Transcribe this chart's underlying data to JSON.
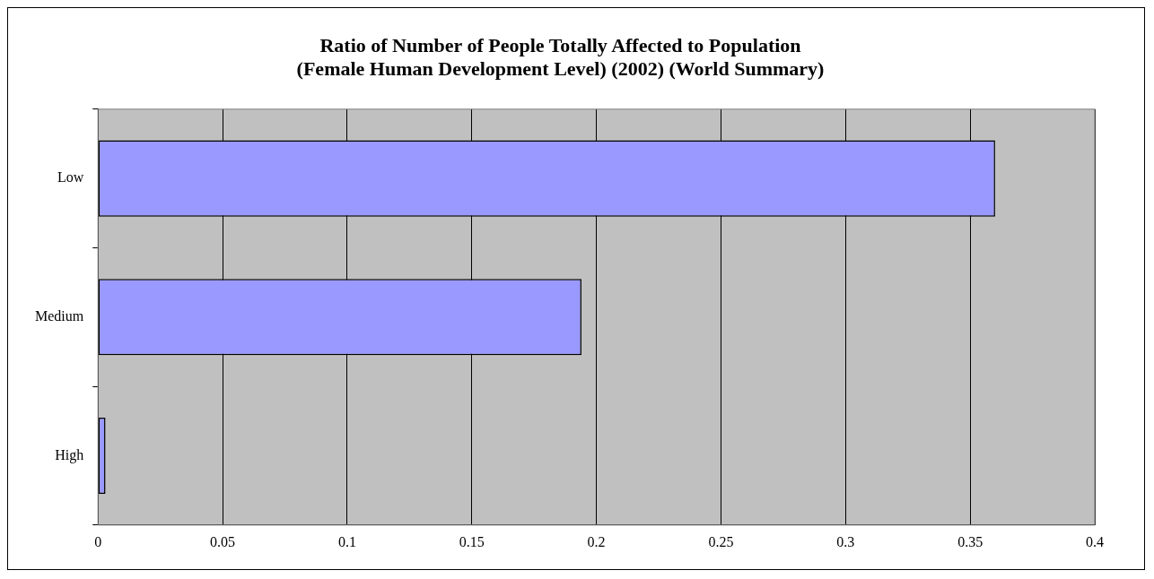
{
  "chart_data": {
    "type": "bar",
    "orientation": "horizontal",
    "title": [
      "Ratio of Number of People Totally Affected to Population",
      "(Female Human Development Level) (2002) (World Summary)"
    ],
    "categories": [
      "Low",
      "Medium",
      "High"
    ],
    "values": [
      0.36,
      0.194,
      0.003
    ],
    "color": "#9999ff",
    "xlim": [
      0,
      0.4
    ],
    "xticks": [
      0,
      0.05,
      0.1,
      0.15,
      0.2,
      0.25,
      0.3,
      0.35,
      0.4
    ],
    "grid": "x",
    "legend": false
  }
}
